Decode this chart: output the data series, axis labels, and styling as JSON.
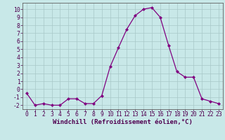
{
  "x": [
    0,
    1,
    2,
    3,
    4,
    5,
    6,
    7,
    8,
    9,
    10,
    11,
    12,
    13,
    14,
    15,
    16,
    17,
    18,
    19,
    20,
    21,
    22,
    23
  ],
  "y": [
    -0.5,
    -2.0,
    -1.8,
    -2.0,
    -2.0,
    -1.2,
    -1.2,
    -1.8,
    -1.8,
    -0.8,
    2.8,
    5.2,
    7.5,
    9.2,
    10.0,
    10.2,
    9.0,
    5.5,
    2.2,
    1.5,
    1.5,
    -1.2,
    -1.5,
    -1.8
  ],
  "line_color": "#800080",
  "marker_color": "#800080",
  "bg_color": "#c8e8e8",
  "grid_color": "#a8c8c8",
  "xlabel": "Windchill (Refroidissement éolien,°C)",
  "xlim": [
    -0.5,
    23.5
  ],
  "ylim": [
    -2.5,
    10.8
  ],
  "xticks": [
    0,
    1,
    2,
    3,
    4,
    5,
    6,
    7,
    8,
    9,
    10,
    11,
    12,
    13,
    14,
    15,
    16,
    17,
    18,
    19,
    20,
    21,
    22,
    23
  ],
  "yticks": [
    -2,
    -1,
    0,
    1,
    2,
    3,
    4,
    5,
    6,
    7,
    8,
    9,
    10
  ],
  "xlabel_fontsize": 6.5,
  "tick_fontsize": 5.8,
  "spine_color": "#606060"
}
